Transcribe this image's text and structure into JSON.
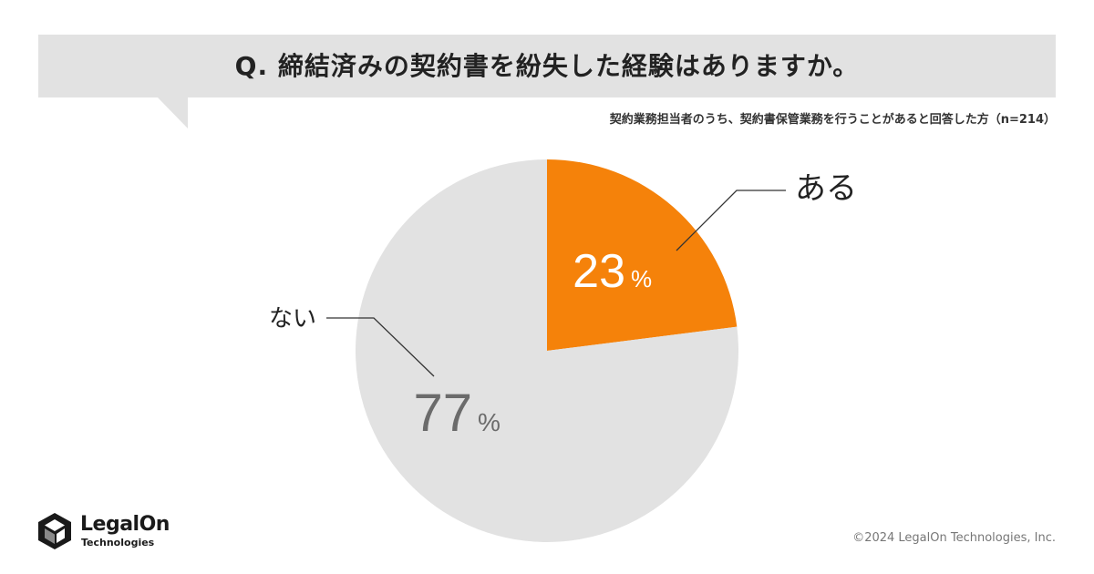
{
  "question": "Q. 締結済みの契約書を紛失した経験はありますか。",
  "subtitle": "契約業務担当者のうち、契約書保管業務を行うことがあると回答した方（n=214）",
  "chart_data": {
    "type": "pie",
    "categories": [
      "ある",
      "ない"
    ],
    "values": [
      23,
      77
    ],
    "unit": "%",
    "value_labels": [
      "23",
      "77"
    ],
    "colors": [
      "#f5820a",
      "#e2e2e2"
    ],
    "label_colors": [
      "#ffffff",
      "#6b6b6b"
    ]
  },
  "brand": {
    "name": "LegalOn",
    "sub": "Technologies"
  },
  "copyright": "©2024 LegalOn Technologies, Inc."
}
